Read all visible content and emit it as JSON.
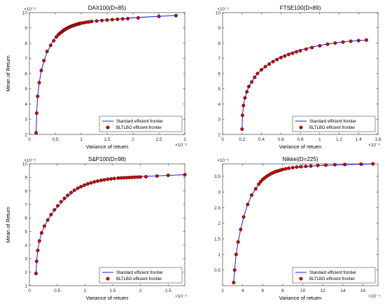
{
  "chart_data": [
    {
      "type": "line",
      "title": "DAX100(D=85)",
      "xlabel": "Variance of retuen",
      "ylabel": "Mean of Return",
      "x_exponent": "×10⁻³",
      "y_exponent": "×10⁻³",
      "xlim": [
        0,
        3
      ],
      "ylim": [
        2,
        10
      ],
      "xticks": [
        "0",
        "0.5",
        "1",
        "1.5",
        "2",
        "2.5",
        "3"
      ],
      "yticks": [
        "2",
        "3",
        "4",
        "5",
        "6",
        "7",
        "8",
        "9",
        "10"
      ],
      "legend_placement": "bottom-right",
      "series": [
        {
          "name": "Standard efficient frontier",
          "color": "#0000ff",
          "x": [
            0.13,
            0.14,
            0.16,
            0.19,
            0.23,
            0.28,
            0.34,
            0.41,
            0.48,
            0.55,
            0.62,
            0.68,
            0.74,
            0.8,
            0.86,
            0.92,
            1.0,
            1.1,
            1.2,
            1.35,
            1.5,
            1.7,
            1.9,
            2.2,
            2.5,
            2.83
          ],
          "y": [
            2.1,
            3.4,
            4.5,
            5.4,
            6.2,
            6.8,
            7.4,
            7.85,
            8.25,
            8.55,
            8.8,
            8.95,
            9.05,
            9.15,
            9.22,
            9.28,
            9.33,
            9.38,
            9.42,
            9.48,
            9.52,
            9.58,
            9.63,
            9.7,
            9.76,
            9.8
          ]
        },
        {
          "name": "BLTLBO efficient frontier",
          "color": "#cc0000",
          "x": [
            0.13,
            0.14,
            0.16,
            0.19,
            0.23,
            0.28,
            0.34,
            0.41,
            0.47,
            0.52,
            0.56,
            0.59,
            0.62,
            0.64,
            0.66,
            0.68,
            0.7,
            0.72,
            0.74,
            0.76,
            0.78,
            0.8,
            0.82,
            0.84,
            0.86,
            0.88,
            0.9,
            0.92,
            0.94,
            0.96,
            0.98,
            1.0,
            1.05,
            1.1,
            1.15,
            1.2,
            1.3,
            1.4,
            1.5,
            1.6,
            1.7,
            1.8,
            1.9,
            2.1,
            2.5,
            2.83
          ],
          "y": [
            2.1,
            3.4,
            4.5,
            5.4,
            6.2,
            6.85,
            7.45,
            7.85,
            8.15,
            8.4,
            8.55,
            8.65,
            8.72,
            8.78,
            8.83,
            8.88,
            8.92,
            8.96,
            9.0,
            9.03,
            9.06,
            9.09,
            9.12,
            9.14,
            9.16,
            9.19,
            9.21,
            9.23,
            9.25,
            9.27,
            9.29,
            9.31,
            9.34,
            9.37,
            9.39,
            9.42,
            9.45,
            9.48,
            9.51,
            9.54,
            9.56,
            9.58,
            9.6,
            9.65,
            9.75,
            9.8
          ]
        }
      ]
    },
    {
      "type": "line",
      "title": "FTSE100(D=89)",
      "xlabel": "Variance of retuen",
      "ylabel": "",
      "x_exponent": "×10⁻³",
      "y_exponent": "×10⁻³",
      "xlim": [
        0,
        1.6
      ],
      "ylim": [
        2,
        10
      ],
      "xticks": [
        "0",
        "0.2",
        "0.4",
        "0.6",
        "0.8",
        "1",
        "1.2",
        "1.4",
        "1.6"
      ],
      "yticks": [
        "2",
        "3",
        "4",
        "5",
        "6",
        "7",
        "8",
        "9",
        "10"
      ],
      "legend_placement": "bottom-right",
      "series": [
        {
          "name": "Standard efficient frontier",
          "color": "#0000ff",
          "x": [
            0.2,
            0.205,
            0.215,
            0.23,
            0.25,
            0.27,
            0.3,
            0.33,
            0.36,
            0.4,
            0.45,
            0.5,
            0.56,
            0.62,
            0.7,
            0.8,
            0.9,
            1.0,
            1.1,
            1.2,
            1.3,
            1.4,
            1.5
          ],
          "y": [
            2.3,
            3.25,
            3.9,
            4.4,
            4.8,
            5.15,
            5.45,
            5.75,
            6.0,
            6.25,
            6.5,
            6.75,
            6.95,
            7.15,
            7.35,
            7.55,
            7.7,
            7.85,
            7.95,
            8.05,
            8.12,
            8.18,
            8.2
          ]
        },
        {
          "name": "BLTLBO efficient frontier",
          "color": "#cc0000",
          "x": [
            0.2,
            0.205,
            0.215,
            0.23,
            0.25,
            0.27,
            0.3,
            0.33,
            0.36,
            0.4,
            0.44,
            0.48,
            0.52,
            0.56,
            0.6,
            0.64,
            0.68,
            0.72,
            0.76,
            0.8,
            0.86,
            0.92,
            1.0,
            1.08,
            1.16,
            1.24,
            1.32,
            1.4,
            1.48
          ],
          "y": [
            2.35,
            3.25,
            3.9,
            4.4,
            4.8,
            5.15,
            5.45,
            5.75,
            6.0,
            6.25,
            6.45,
            6.62,
            6.78,
            6.92,
            7.05,
            7.15,
            7.25,
            7.33,
            7.42,
            7.5,
            7.6,
            7.7,
            7.82,
            7.92,
            8.0,
            8.06,
            8.12,
            8.16,
            8.2
          ]
        }
      ]
    },
    {
      "type": "line",
      "title": "S&P100(D=98)",
      "xlabel": "Variance of retuen",
      "ylabel": "Mean of Return",
      "x_exponent": "×10⁻³",
      "y_exponent": "×10⁻³",
      "xlim": [
        0,
        2.8
      ],
      "ylim": [
        1,
        10
      ],
      "xticks": [
        "0",
        "0.5",
        "1",
        "1.5",
        "2",
        "2.5"
      ],
      "yticks": [
        "1",
        "2",
        "3",
        "4",
        "5",
        "6",
        "7",
        "8",
        "9",
        "10"
      ],
      "legend_placement": "bottom-right",
      "series": [
        {
          "name": "Standard efficient frontier",
          "color": "#0000ff",
          "x": [
            0.12,
            0.13,
            0.15,
            0.18,
            0.22,
            0.27,
            0.33,
            0.4,
            0.48,
            0.56,
            0.64,
            0.72,
            0.8,
            0.9,
            1.0,
            1.1,
            1.2,
            1.3,
            1.4,
            1.5,
            1.6,
            1.8,
            2.0,
            2.2,
            2.4,
            2.6,
            2.8
          ],
          "y": [
            1.9,
            2.8,
            3.6,
            4.3,
            4.9,
            5.4,
            5.85,
            6.3,
            6.7,
            7.05,
            7.4,
            7.7,
            7.95,
            8.2,
            8.4,
            8.55,
            8.67,
            8.76,
            8.83,
            8.9,
            8.95,
            9.02,
            9.07,
            9.1,
            9.13,
            9.16,
            9.2
          ]
        },
        {
          "name": "BLTLBO efficient frontier",
          "color": "#cc0000",
          "x": [
            0.12,
            0.13,
            0.15,
            0.18,
            0.22,
            0.27,
            0.33,
            0.39,
            0.45,
            0.51,
            0.57,
            0.63,
            0.69,
            0.75,
            0.81,
            0.87,
            0.93,
            0.99,
            1.05,
            1.11,
            1.17,
            1.23,
            1.29,
            1.35,
            1.41,
            1.47,
            1.53,
            1.6,
            1.65,
            1.7,
            1.75,
            1.8,
            1.85,
            1.9,
            1.95,
            2.0,
            2.1,
            2.3,
            2.5,
            2.8
          ],
          "y": [
            1.9,
            2.8,
            3.6,
            4.3,
            4.9,
            5.4,
            5.85,
            6.25,
            6.6,
            6.9,
            7.2,
            7.45,
            7.68,
            7.88,
            8.05,
            8.2,
            8.32,
            8.43,
            8.52,
            8.6,
            8.67,
            8.73,
            8.78,
            8.82,
            8.86,
            8.89,
            8.92,
            8.95,
            8.96,
            8.97,
            8.98,
            8.99,
            9.0,
            9.01,
            9.02,
            9.03,
            9.05,
            9.1,
            9.15,
            9.2
          ]
        }
      ]
    },
    {
      "type": "line",
      "title": "Nikkei(D=225)",
      "xlabel": "Variance of retuen",
      "ylabel": "",
      "x_exponent": "×10⁻⁴",
      "y_exponent": "×10⁻³",
      "xlim": [
        2,
        17.5
      ],
      "ylim": [
        0,
        3.9
      ],
      "xticks": [
        "2",
        "4",
        "6",
        "8",
        "10",
        "12",
        "14",
        "16"
      ],
      "yticks": [
        "0.5",
        "1",
        "1.5",
        "2",
        "2.5",
        "3",
        "3.5"
      ],
      "legend_placement": "bottom-right",
      "series": [
        {
          "name": "Standard efficient frontier",
          "color": "#0000ff",
          "x": [
            3.1,
            3.2,
            3.35,
            3.55,
            3.8,
            4.1,
            4.5,
            4.9,
            5.3,
            5.7,
            6.1,
            6.5,
            7.0,
            7.5,
            8.0,
            9.0,
            10.0,
            11.0,
            12.0,
            13.0,
            14.0,
            15.0,
            16.0,
            17.0
          ],
          "y": [
            0.1,
            0.5,
            1.0,
            1.4,
            1.8,
            2.2,
            2.6,
            2.9,
            3.1,
            3.3,
            3.45,
            3.55,
            3.62,
            3.68,
            3.72,
            3.77,
            3.8,
            3.83,
            3.85,
            3.86,
            3.87,
            3.88,
            3.89,
            3.9
          ]
        },
        {
          "name": "BLTLBO efficient frontier",
          "color": "#cc0000",
          "x": [
            3.1,
            3.2,
            3.35,
            3.55,
            3.8,
            4.1,
            4.5,
            4.9,
            5.3,
            5.6,
            5.8,
            6.0,
            6.2,
            6.4,
            6.6,
            6.8,
            7.0,
            7.2,
            7.4,
            7.6,
            7.8,
            8.0,
            8.3,
            8.6,
            9.0,
            9.4,
            9.8,
            10.3,
            10.8,
            11.5,
            12.3,
            13.2,
            14.2,
            15.8,
            17.0
          ],
          "y": [
            0.1,
            0.5,
            1.0,
            1.4,
            1.8,
            2.2,
            2.6,
            2.9,
            3.1,
            3.25,
            3.33,
            3.4,
            3.45,
            3.5,
            3.54,
            3.58,
            3.61,
            3.64,
            3.66,
            3.68,
            3.7,
            3.72,
            3.74,
            3.76,
            3.78,
            3.8,
            3.81,
            3.82,
            3.83,
            3.85,
            3.86,
            3.87,
            3.88,
            3.89,
            3.9
          ]
        }
      ]
    }
  ]
}
